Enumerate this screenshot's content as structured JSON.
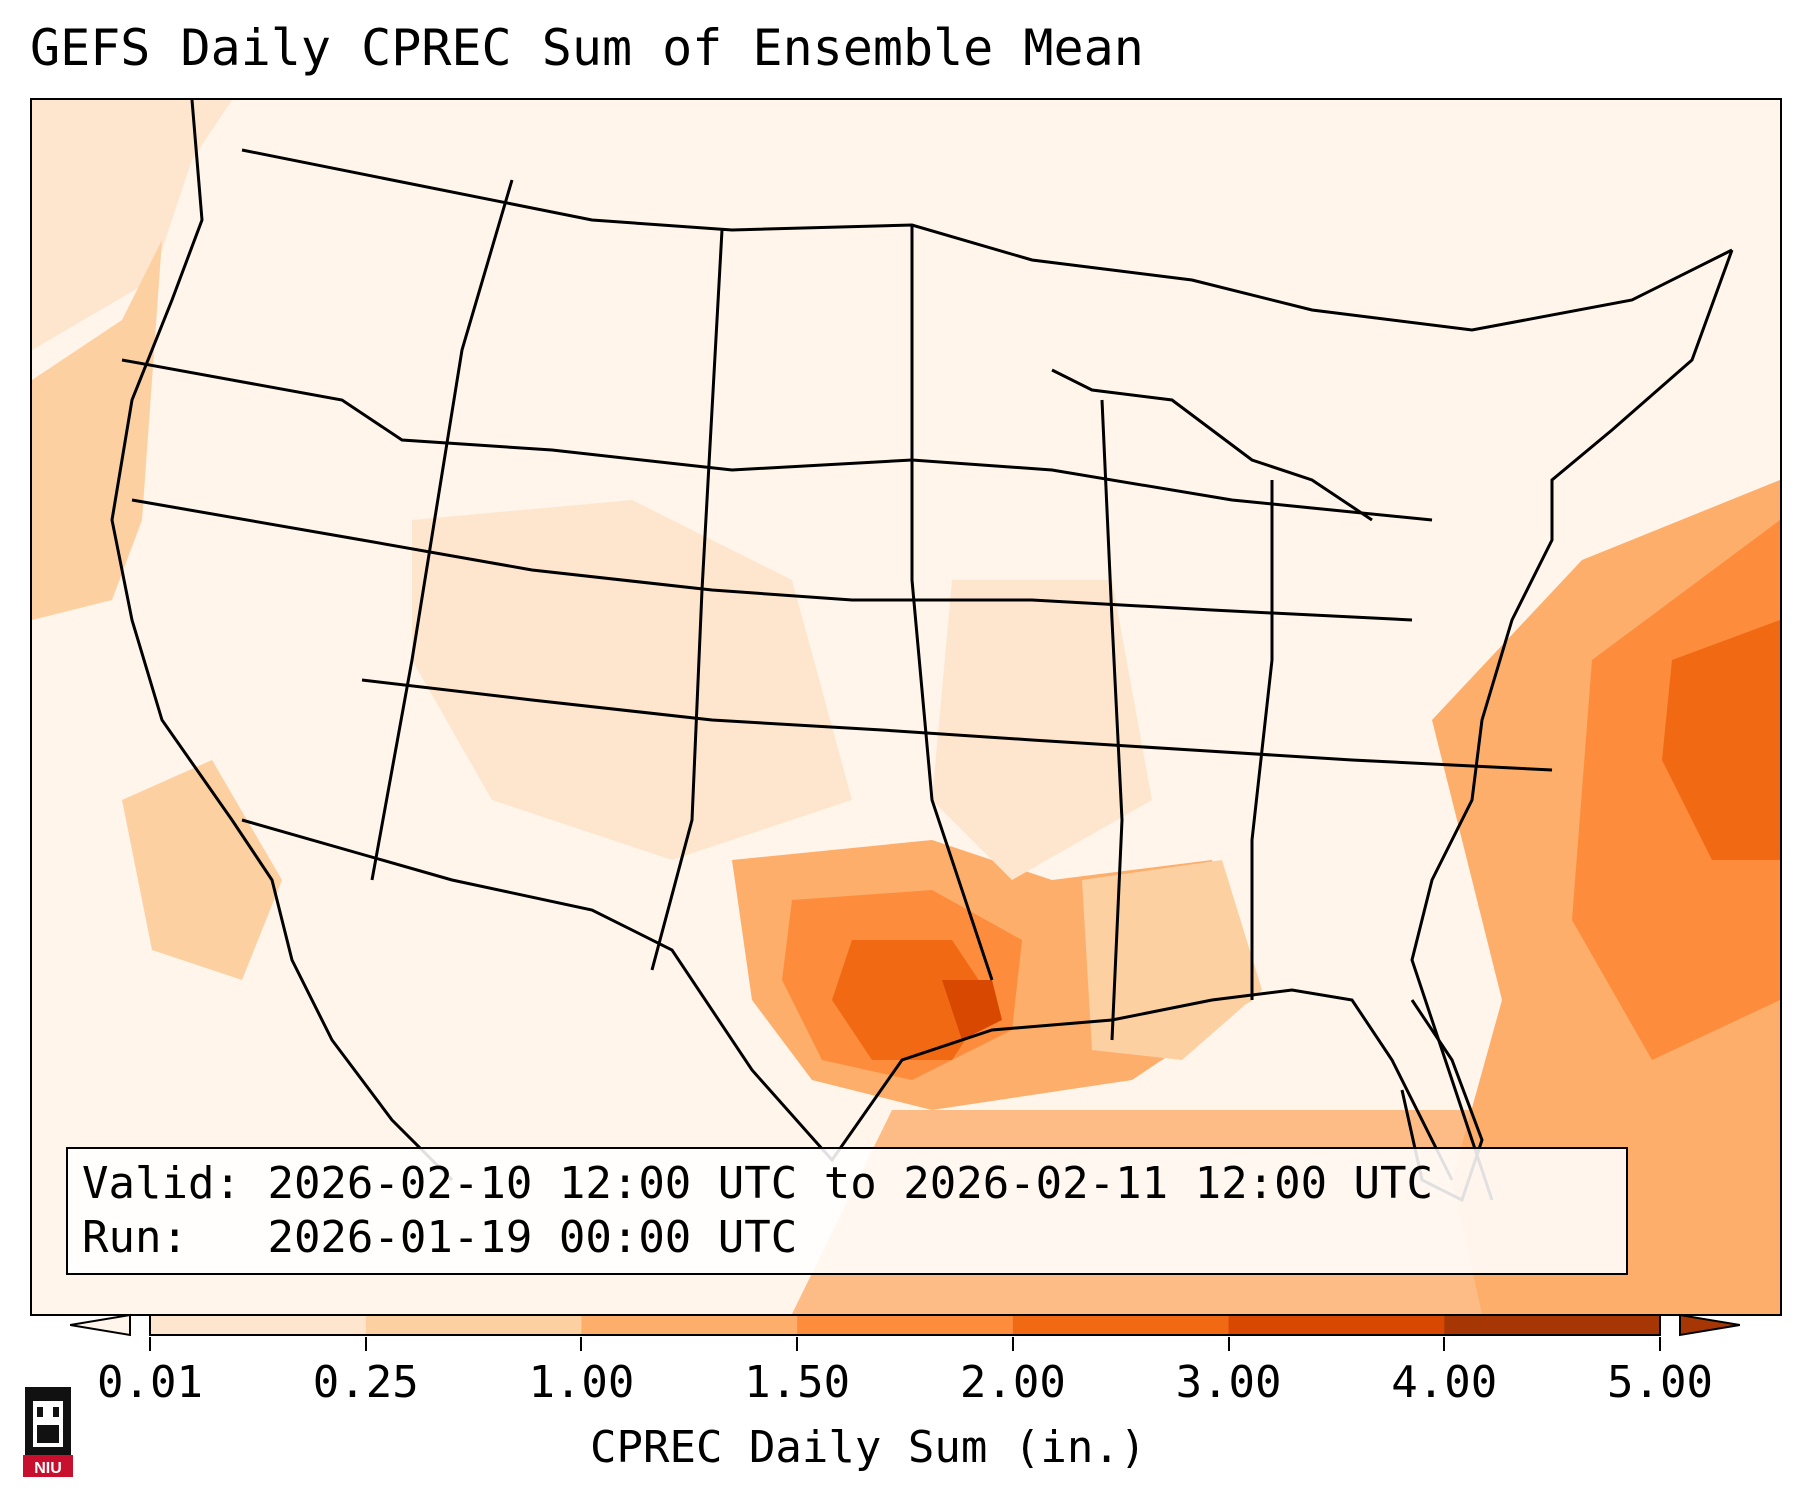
{
  "title": "GEFS Daily CPREC Sum of Ensemble Mean",
  "info": {
    "valid_label": "Valid:",
    "valid_text": "2026-02-10 12:00 UTC to 2026-02-11 12:00 UTC",
    "run_label": "Run:",
    "run_text": "2026-01-19 00:00 UTC"
  },
  "colorbar": {
    "ticks": [
      "0.01",
      "0.25",
      "1.00",
      "1.50",
      "2.00",
      "3.00",
      "4.00",
      "5.00"
    ],
    "label": "CPREC Daily Sum (in.)",
    "colors": [
      "#fff5eb",
      "#fee6ce",
      "#fdd0a2",
      "#fdae6b",
      "#fd8d3c",
      "#f16913",
      "#d94801",
      "#a63603"
    ]
  },
  "logo": {
    "text": "NIU",
    "icon": "university-tower-icon"
  },
  "map": {
    "region": "Contiguous United States",
    "max_region": "East Texas / Louisiana and Atlantic off the Southeast coast"
  }
}
